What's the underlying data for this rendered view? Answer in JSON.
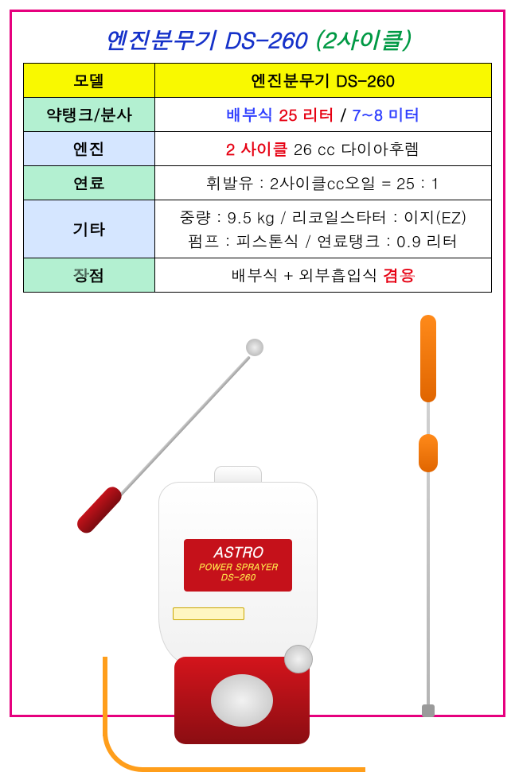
{
  "title": {
    "main": "엔진분무기 DS-260",
    "sub": "(2사이클)",
    "main_color": "#1531c9",
    "sub_color": "#009944",
    "fontsize": 28
  },
  "table": {
    "border_color": "#000000",
    "header_bg": "#f9f900",
    "label_bg_mint": "#b3f0d1",
    "label_bg_blue": "#d5e6ff",
    "fontsize": 20,
    "header": {
      "label": "모델",
      "value": "엔진분무기 DS-260"
    },
    "rows": [
      {
        "label": "약탱크/분사",
        "label_bg": "mint",
        "segments": [
          {
            "text": "배부식 ",
            "color": "#2f3fff",
            "bold": true
          },
          {
            "text": "25 리터",
            "color": "#e60012",
            "bold": true
          },
          {
            "text": " / ",
            "color": "#000000",
            "bold": true
          },
          {
            "text": "7~8 미터",
            "color": "#2f3fff",
            "bold": true
          }
        ]
      },
      {
        "label": "엔진",
        "label_bg": "blue",
        "segments": [
          {
            "text": "2 사이클",
            "color": "#e60012",
            "bold": true
          },
          {
            "text": " 26 cc 다이아후렘",
            "color": "#000000",
            "bold": false
          }
        ]
      },
      {
        "label": "연료",
        "label_bg": "mint",
        "segments": [
          {
            "text": "휘발유 : 2사이클cc오일 = 25 : 1",
            "color": "#000000",
            "bold": false
          }
        ]
      },
      {
        "label": "기타",
        "label_bg": "blue",
        "lines": [
          [
            {
              "text": "중량 : 9.5 kg / 리코일스타터 : 이지(EZ)",
              "color": "#000000",
              "bold": false
            }
          ],
          [
            {
              "text": "펌프 : 피스톤식 / 연료탱크 : 0.9 리터",
              "color": "#000000",
              "bold": false
            }
          ]
        ]
      },
      {
        "label": "장점",
        "label_bg": "mint",
        "segments": [
          {
            "text": "배부식 + 외부흡입식 ",
            "color": "#000000",
            "bold": false
          },
          {
            "text": "겸용",
            "color": "#e60012",
            "bold": true
          }
        ]
      }
    ]
  },
  "product_label": {
    "line1": "ASTRO",
    "line2": "POWER SPRAYER",
    "line3": "DS-260",
    "bg": "#c5111a"
  },
  "outer_border_color": "#e6007e"
}
